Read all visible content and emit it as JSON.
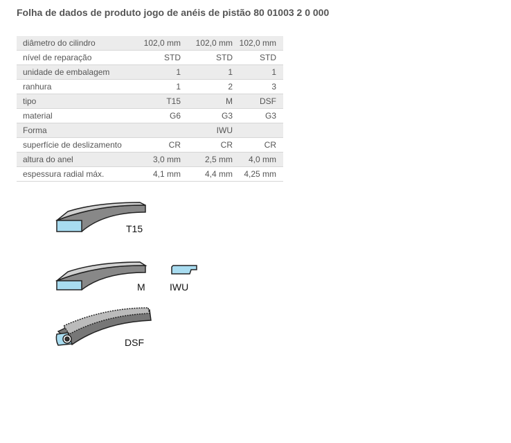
{
  "title": "Folha de dados de produto jogo de anéis de pistão 80 01003 2 0 000",
  "rows": [
    {
      "label": "diâmetro do cilindro",
      "values": [
        "102,0 mm",
        "102,0 mm",
        "102,0 mm"
      ]
    },
    {
      "label": "nível de reparação",
      "values": [
        "STD",
        "STD",
        "STD"
      ]
    },
    {
      "label": "unidade de embalagem",
      "values": [
        "1",
        "1",
        "1"
      ]
    },
    {
      "label": "ranhura",
      "values": [
        "1",
        "2",
        "3"
      ]
    },
    {
      "label": "tipo",
      "values": [
        "T15",
        "M",
        "DSF"
      ]
    },
    {
      "label": "material",
      "values": [
        "G6",
        "G3",
        "G3"
      ]
    },
    {
      "label": "Forma",
      "values": [
        "",
        "IWU",
        ""
      ]
    },
    {
      "label": "superfície de deslizamento",
      "values": [
        "CR",
        "CR",
        "CR"
      ]
    },
    {
      "label": "altura do anel",
      "values": [
        "3,0 mm",
        "2,5 mm",
        "4,0 mm"
      ]
    },
    {
      "label": "espessura radial máx.",
      "values": [
        "4,1 mm",
        "4,4 mm",
        "4,25 mm"
      ]
    }
  ],
  "figures": {
    "t15": "T15",
    "m": "M",
    "iwu": "IWU",
    "dsf": "DSF"
  }
}
